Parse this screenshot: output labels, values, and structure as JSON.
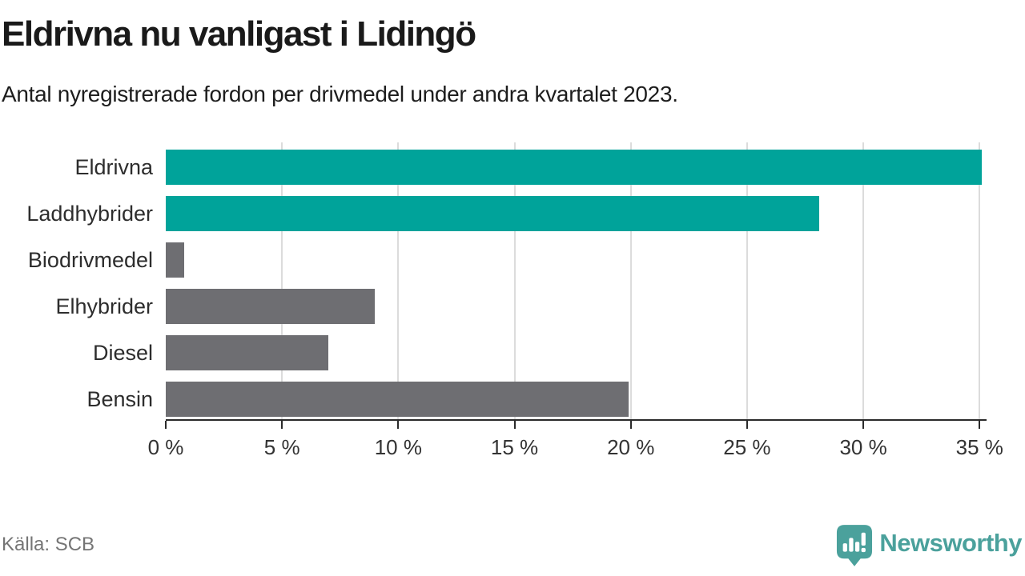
{
  "header": {
    "title": "Eldrivna nu vanligast i Lidingö",
    "subtitle": "Antal nyregistrerade fordon per drivmedel under andra kvartalet 2023."
  },
  "chart_data": {
    "type": "bar",
    "orientation": "horizontal",
    "title": "Eldrivna nu vanligast i Lidingö",
    "subtitle": "Antal nyregistrerade fordon per drivmedel under andra kvartalet 2023.",
    "categories": [
      "Eldrivna",
      "Laddhybrider",
      "Biodrivmedel",
      "Elhybrider",
      "Diesel",
      "Bensin"
    ],
    "values": [
      35.1,
      28.1,
      0.8,
      9.0,
      7.0,
      19.9
    ],
    "bar_colors": [
      "#00a39a",
      "#00a39a",
      "#6e6e72",
      "#6e6e72",
      "#6e6e72",
      "#6e6e72"
    ],
    "xlabel": "",
    "ylabel": "",
    "xlim": [
      0,
      35.3
    ],
    "xtick_values": [
      0,
      5,
      10,
      15,
      20,
      25,
      30,
      35
    ],
    "xtick_labels": [
      "0 %",
      "5 %",
      "10 %",
      "15 %",
      "20 %",
      "25 %",
      "30 %",
      "35 %"
    ],
    "grid": true,
    "legend": false
  },
  "colors": {
    "highlight": "#00a39a",
    "neutral": "#6e6e72",
    "gridline": "#dcdcdc",
    "axis": "#2b2b2b",
    "brand_teal": "#4ba19c"
  },
  "footer": {
    "source": "Källa: SCB",
    "brand": "Newsworthy"
  }
}
